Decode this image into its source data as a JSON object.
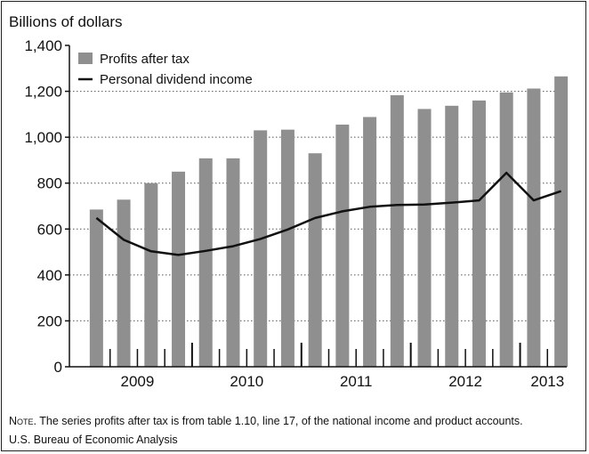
{
  "chart_data": {
    "type": "bar",
    "ylabel": "Billions of dollars",
    "ylim": [
      0,
      1400
    ],
    "yticks": [
      0,
      200,
      400,
      600,
      800,
      1000,
      1200,
      1400
    ],
    "ytick_labels": [
      "0",
      "200",
      "400",
      "600",
      "800",
      "1,000",
      "1,200",
      "1,400"
    ],
    "x_year_labels": [
      "2009",
      "2010",
      "2011",
      "2012",
      "2013"
    ],
    "grid": "horizontal dotted",
    "legend_position": "top-left",
    "categories": [
      "2009 Q1",
      "2009 Q2",
      "2009 Q3",
      "2009 Q4",
      "2010 Q1",
      "2010 Q2",
      "2010 Q3",
      "2010 Q4",
      "2011 Q1",
      "2011 Q2",
      "2011 Q3",
      "2011 Q4",
      "2012 Q1",
      "2012 Q2",
      "2012 Q3",
      "2012 Q4",
      "2013 Q1",
      "2013 Q2"
    ],
    "series": [
      {
        "name": "Profits after tax",
        "kind": "bar",
        "color": "#8f8f8f",
        "values": [
          685,
          728,
          800,
          850,
          908,
          908,
          1030,
          1033,
          930,
          1055,
          1088,
          1183,
          1123,
          1137,
          1160,
          1195,
          1212,
          1265
        ]
      },
      {
        "name": "Personal dividend income",
        "kind": "line",
        "color": "#111111",
        "values": [
          648,
          553,
          503,
          487,
          505,
          525,
          557,
          598,
          648,
          677,
          697,
          705,
          707,
          715,
          725,
          845,
          725,
          765
        ]
      }
    ]
  },
  "note": {
    "prefix": "Note.",
    "text": " The series profits after tax is from table 1.10, line 17, of the national income and product accounts.",
    "source": "U.S. Bureau of Economic Analysis"
  }
}
